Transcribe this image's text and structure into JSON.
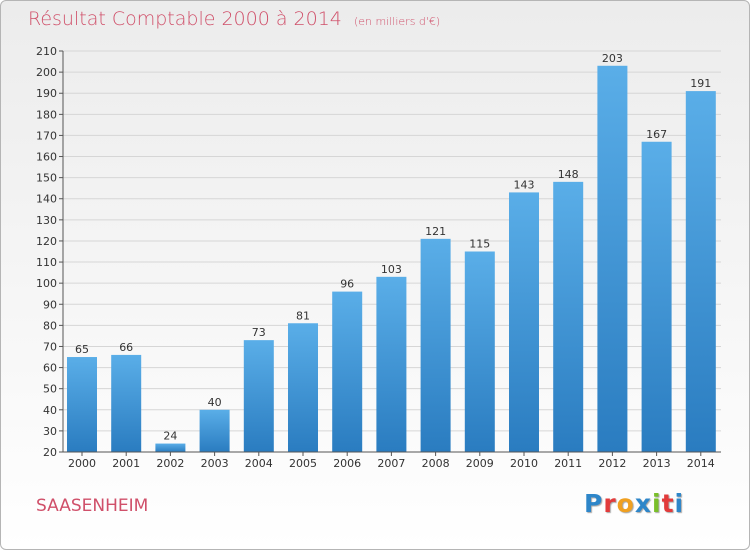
{
  "header": {
    "title": "Résultat Comptable 2000 à 2014",
    "subtitle": "(en milliers d'€)"
  },
  "footer": {
    "commune": "SAASENHEIM",
    "logo_letters": [
      "P",
      "r",
      "o",
      "x",
      "i",
      "t",
      "i"
    ],
    "logo_colors": [
      "#2e86c9",
      "#e23b3b",
      "#f0a020",
      "#2e86c9",
      "#7abf2a",
      "#e23b3b",
      "#2e86c9"
    ]
  },
  "colors": {
    "accent": "#d0506a",
    "bar_light": "#5aaee8",
    "bar_dark": "#2a7cc0"
  },
  "chart_data": {
    "type": "bar",
    "title": "Résultat Comptable 2000 à 2014",
    "subtitle": "(en milliers d'€)",
    "categories": [
      "2000",
      "2001",
      "2002",
      "2003",
      "2004",
      "2005",
      "2006",
      "2007",
      "2008",
      "2009",
      "2010",
      "2011",
      "2012",
      "2013",
      "2014"
    ],
    "values": [
      65,
      66,
      24,
      40,
      73,
      81,
      96,
      103,
      121,
      115,
      143,
      148,
      203,
      167,
      191
    ],
    "ylim": [
      20,
      210
    ],
    "yticks": [
      20,
      30,
      40,
      50,
      60,
      70,
      80,
      90,
      100,
      110,
      120,
      130,
      140,
      150,
      160,
      170,
      180,
      190,
      200,
      210
    ],
    "grid": true,
    "xlabel": "",
    "ylabel": ""
  }
}
